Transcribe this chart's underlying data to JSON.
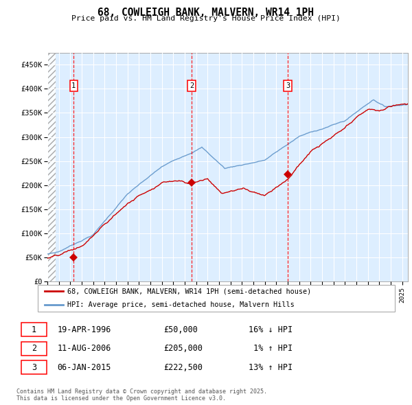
{
  "title": "68, COWLEIGH BANK, MALVERN, WR14 1PH",
  "subtitle": "Price paid vs. HM Land Registry's House Price Index (HPI)",
  "legend_line1": "68, COWLEIGH BANK, MALVERN, WR14 1PH (semi-detached house)",
  "legend_line2": "HPI: Average price, semi-detached house, Malvern Hills",
  "footer": "Contains HM Land Registry data © Crown copyright and database right 2025.\nThis data is licensed under the Open Government Licence v3.0.",
  "transactions": [
    {
      "label": "1",
      "date": "19-APR-1996",
      "price": 50000,
      "hpi_diff": "16% ↓ HPI",
      "year": 1996.3
    },
    {
      "label": "2",
      "date": "11-AUG-2006",
      "price": 205000,
      "hpi_diff": "1% ↑ HPI",
      "year": 2006.6
    },
    {
      "label": "3",
      "date": "06-JAN-2015",
      "price": 222500,
      "hpi_diff": "13% ↑ HPI",
      "year": 2015.0
    }
  ],
  "ylim": [
    0,
    475000
  ],
  "xlim_start": 1994.0,
  "xlim_end": 2025.5,
  "yticks": [
    0,
    50000,
    100000,
    150000,
    200000,
    250000,
    300000,
    350000,
    400000,
    450000
  ],
  "ytick_labels": [
    "£0",
    "£50K",
    "£100K",
    "£150K",
    "£200K",
    "£250K",
    "£300K",
    "£350K",
    "£400K",
    "£450K"
  ],
  "hpi_color": "#6699cc",
  "price_color": "#cc0000",
  "bg_color": "#ddeeff",
  "grid_color": "#ffffff",
  "hatch_color": "#cccccc",
  "figwidth": 6.0,
  "figheight": 5.9,
  "dpi": 100
}
